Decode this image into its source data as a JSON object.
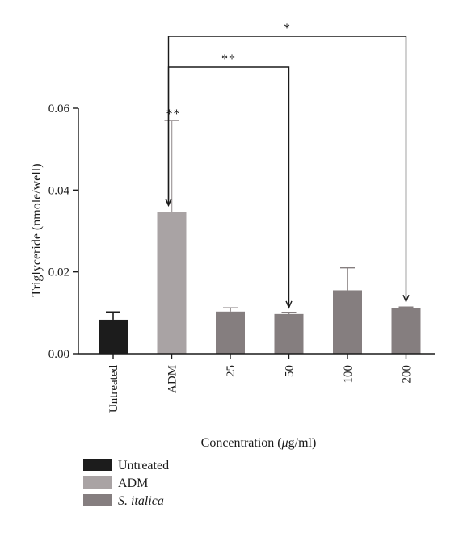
{
  "chart_data": {
    "type": "bar",
    "categories": [
      "Untreated",
      "ADM",
      "25",
      "50",
      "100",
      "200"
    ],
    "values": [
      0.0083,
      0.0347,
      0.0103,
      0.0097,
      0.0155,
      0.0112
    ],
    "errors": [
      0.0019,
      0.0223,
      0.0009,
      0.0004,
      0.0055,
      0.0002
    ],
    "groups": [
      "Untreated",
      "ADM",
      "S. italica",
      "S. italica",
      "S. italica",
      "S. italica"
    ],
    "group_colors": {
      "Untreated": "#1c1c1c",
      "ADM": "#a9a3a4",
      "S. italica": "#857e7f"
    },
    "xlabel_prefix": "Concentration (",
    "xlabel_mu": "μ",
    "xlabel_suffix": "g/ml)",
    "ylabel": "Triglyceride (nmole/well)",
    "ylim": [
      0,
      0.06
    ],
    "yticks": [
      "0.00",
      "0.02",
      "0.04",
      "0.06"
    ],
    "grid": false,
    "legend_position": "bottom-left",
    "legend": [
      {
        "label": "Untreated",
        "color": "#1c1c1c",
        "italic": false
      },
      {
        "label": "ADM",
        "color": "#a9a3a4",
        "italic": false
      },
      {
        "label": "S. italica",
        "color": "#857e7f",
        "italic": true
      }
    ],
    "significance": [
      {
        "from": 1,
        "to": 5,
        "label": "*"
      },
      {
        "from": 1,
        "to": 3,
        "label": "**"
      },
      {
        "on": 1,
        "label": "**"
      }
    ]
  }
}
